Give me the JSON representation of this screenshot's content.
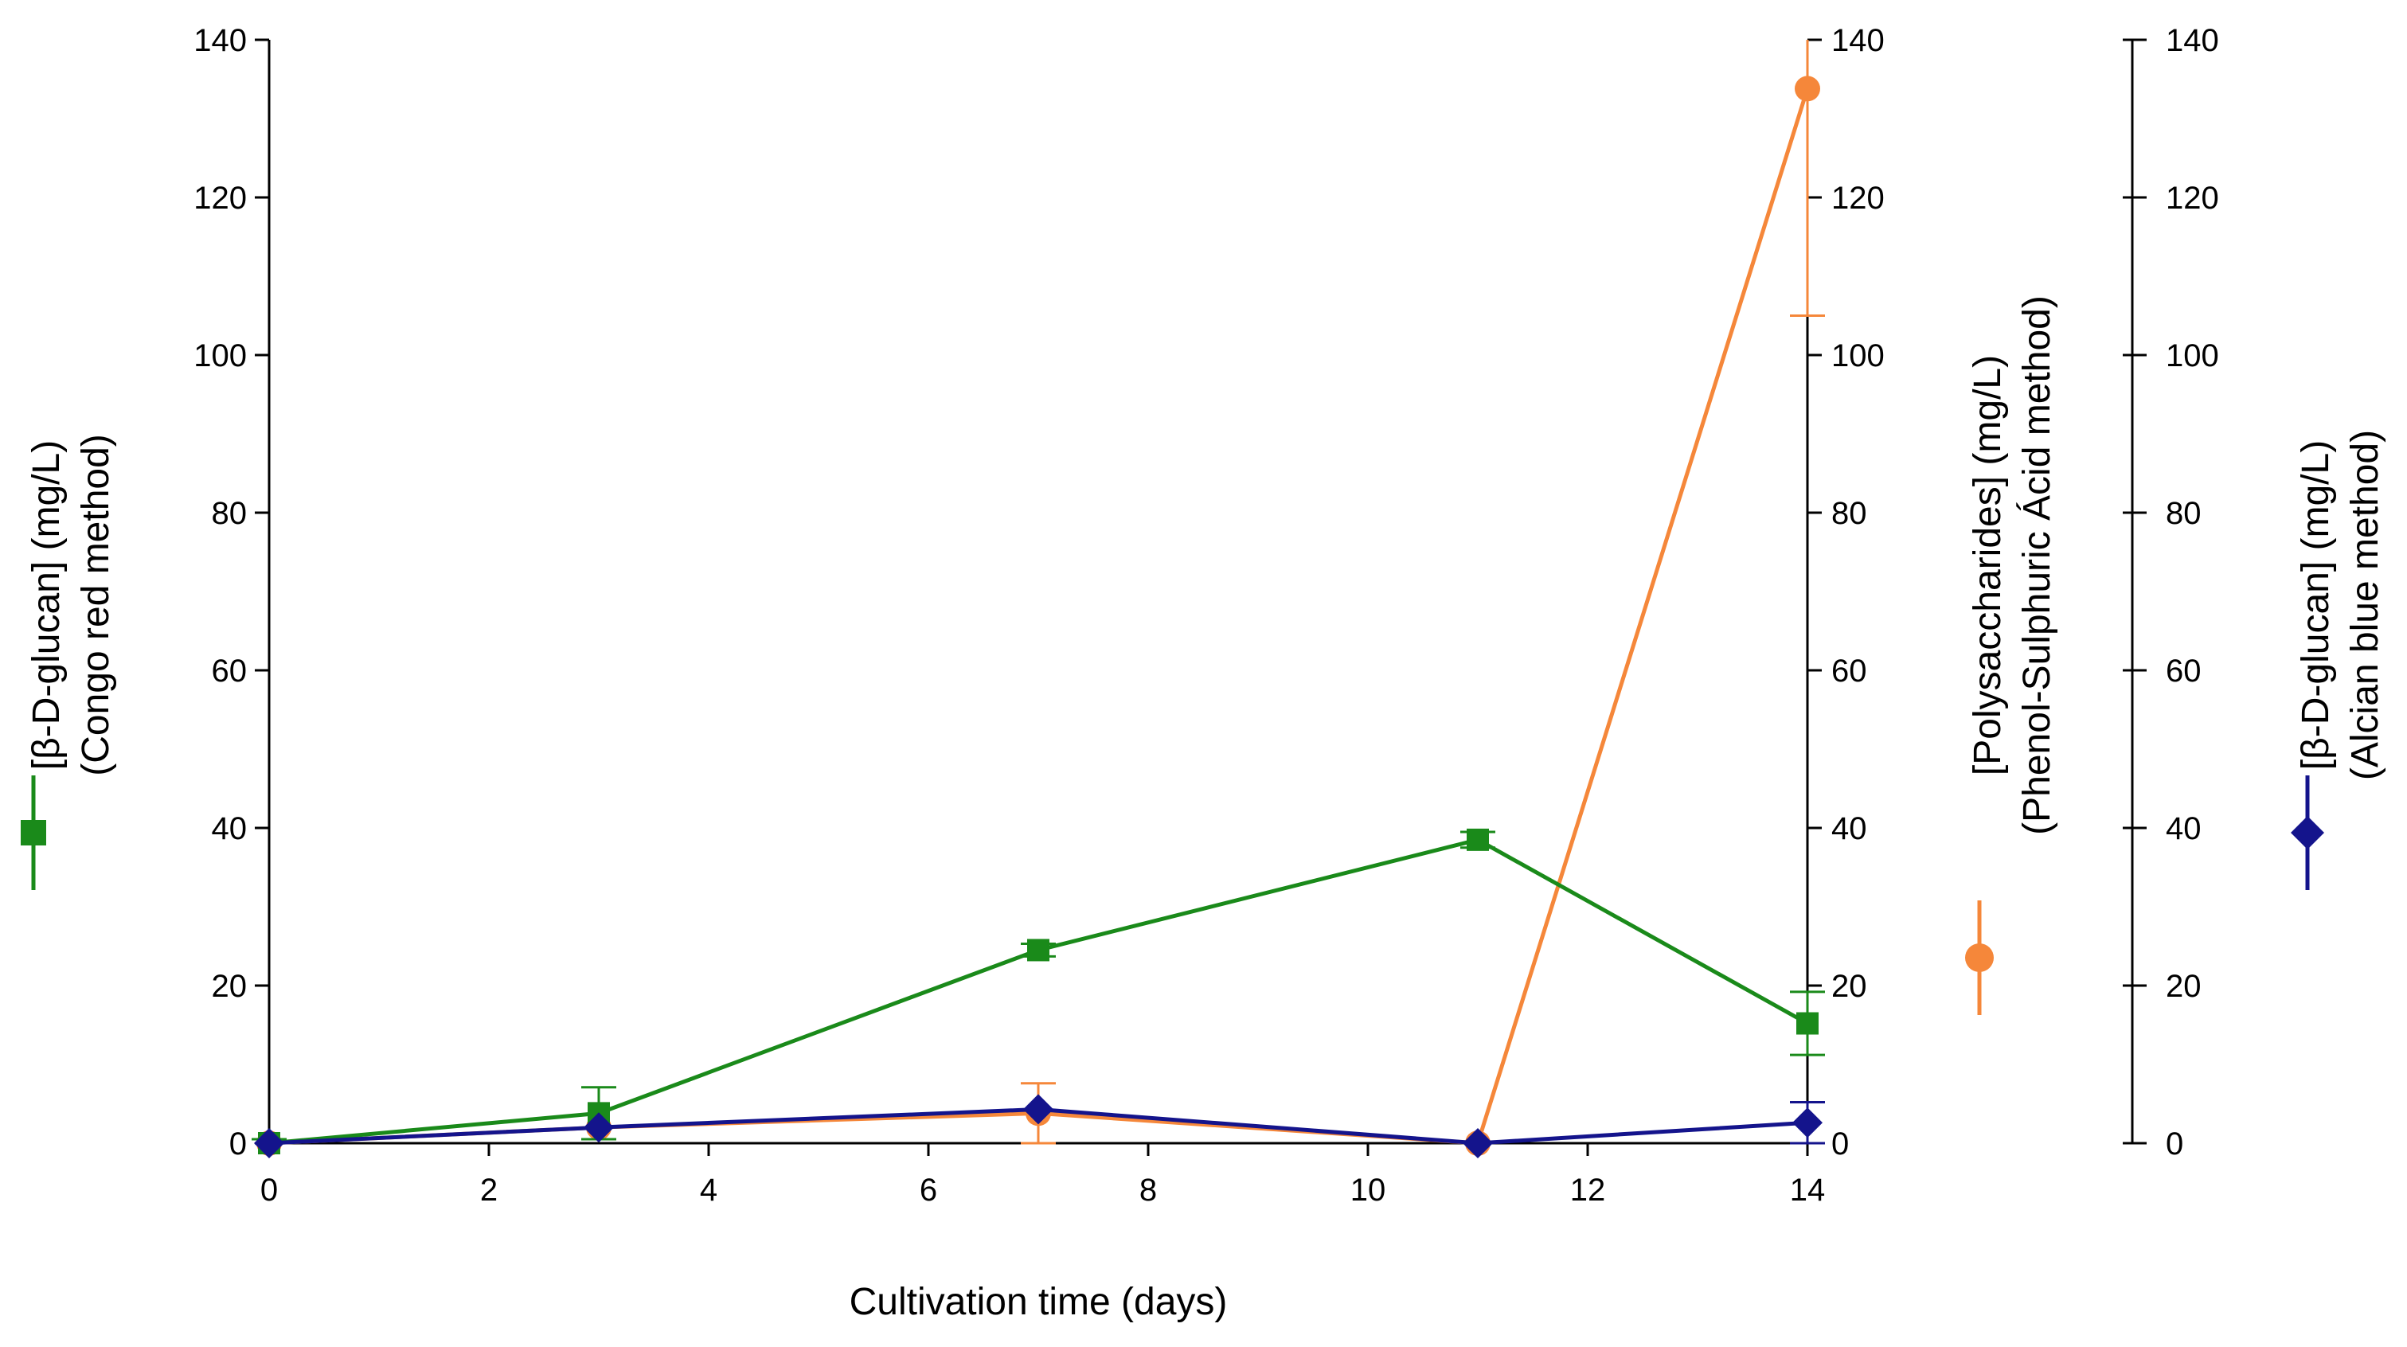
{
  "chart_data": {
    "type": "line",
    "x": [
      0,
      3,
      7,
      11,
      14
    ],
    "xlim": [
      0,
      14
    ],
    "xticks": [
      "0",
      "2",
      "4",
      "6",
      "8",
      "10",
      "12",
      "14"
    ],
    "xlabel": "Cultivation time (days)",
    "yticks": [
      "0",
      "20",
      "40",
      "60",
      "80",
      "100",
      "120",
      "140"
    ],
    "ylim": [
      0,
      140
    ],
    "axes": {
      "left": {
        "label_line1": "[β-D-glucan] (mg/L)",
        "label_line2": "(Congo red method)"
      },
      "middle": {
        "label_line1": "[Polysaccharides] (mg/L)",
        "label_line2": "(Phenol-Sulphuric Ácid method)"
      },
      "right": {
        "label_line1": "[β-D-glucan] (mg/L)",
        "label_line2": "(Alcian blue method)"
      }
    },
    "series": [
      {
        "name": "Congo red method",
        "color": "#1a8a1a",
        "marker": "square",
        "values": [
          0,
          3.8,
          24.5,
          38.5,
          15.2
        ],
        "errors": [
          0.5,
          3.3,
          0.8,
          1.0,
          4.0
        ]
      },
      {
        "name": "Phenol-Sulphuric Ácid method",
        "color": "#f5873a",
        "marker": "circle",
        "values": [
          0,
          2.0,
          3.8,
          0,
          133.8
        ],
        "errors": [
          0,
          0,
          3.8,
          0,
          28.8
        ]
      },
      {
        "name": "Alcian blue method",
        "color": "#14148c",
        "marker": "diamond",
        "values": [
          0,
          2.0,
          4.3,
          0,
          2.6
        ],
        "errors": [
          0,
          0,
          0,
          0,
          2.6
        ]
      }
    ]
  }
}
